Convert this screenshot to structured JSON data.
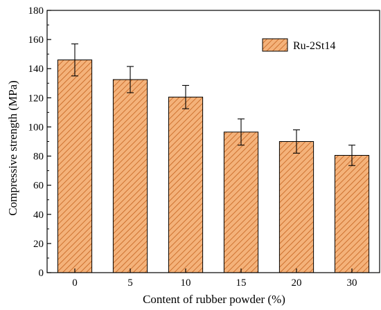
{
  "chart_data": {
    "type": "bar",
    "xlabel": "Content of rubber powder (%)",
    "ylabel": "Compressive strength (MPa)",
    "categories": [
      "0",
      "5",
      "10",
      "15",
      "20",
      "30"
    ],
    "series": [
      {
        "name": "Ru-2St14",
        "values": [
          146,
          132.5,
          120.5,
          96.5,
          90,
          80.5
        ],
        "errors": [
          11,
          9,
          8,
          9,
          8,
          7
        ]
      }
    ],
    "ylim": [
      0,
      180
    ],
    "yticks": [
      0,
      20,
      40,
      60,
      80,
      100,
      120,
      140,
      160,
      180
    ],
    "grid": false,
    "legend_position": "top-right",
    "colors": {
      "bar_fill": "#F4B27A",
      "hatch": "#C4621E",
      "axis": "#000000"
    }
  }
}
